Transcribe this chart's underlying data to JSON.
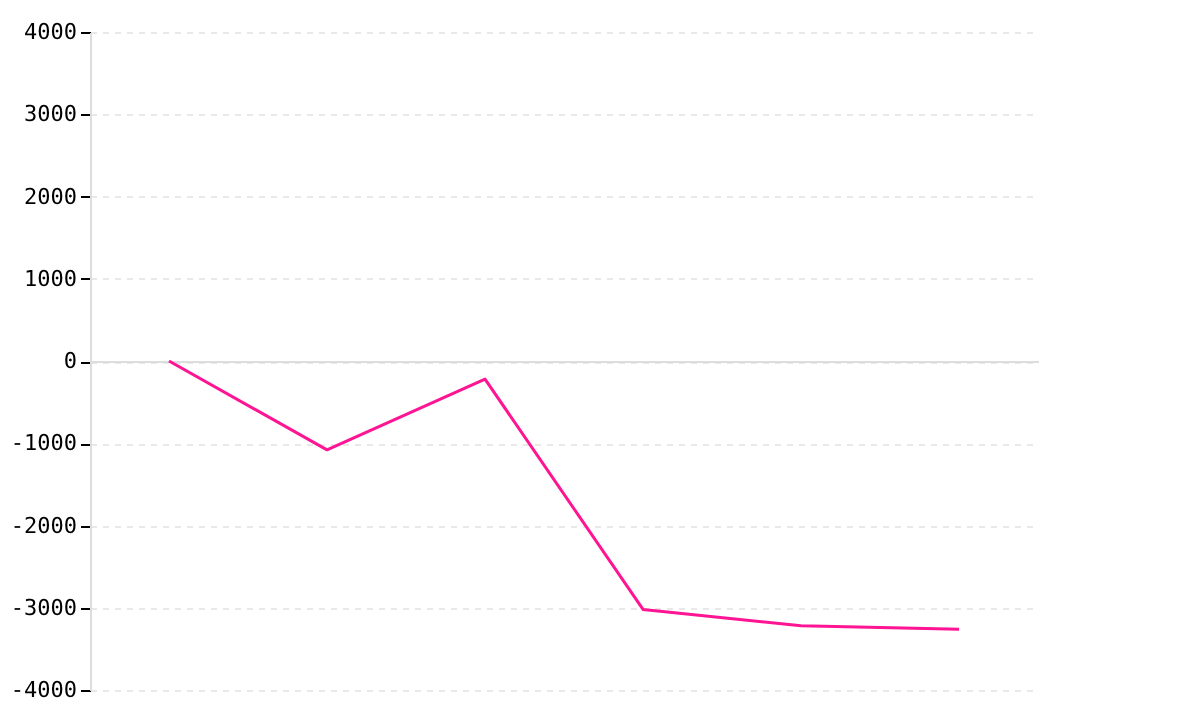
{
  "chart_data": {
    "type": "line",
    "categories": [
      null,
      null,
      null,
      null,
      null,
      null
    ],
    "series": [
      {
        "color": "#ff1493",
        "values": [
          0,
          -1080,
          -220,
          -3020,
          -3220,
          -3260
        ]
      }
    ],
    "ylim": [
      -4000,
      4000
    ],
    "yticks": [
      -4000,
      -3000,
      -2000,
      -1000,
      0,
      1000,
      2000,
      3000,
      4000
    ],
    "grid": "y",
    "tick_labels": "y",
    "marker": "none",
    "line_style": "solid"
  }
}
